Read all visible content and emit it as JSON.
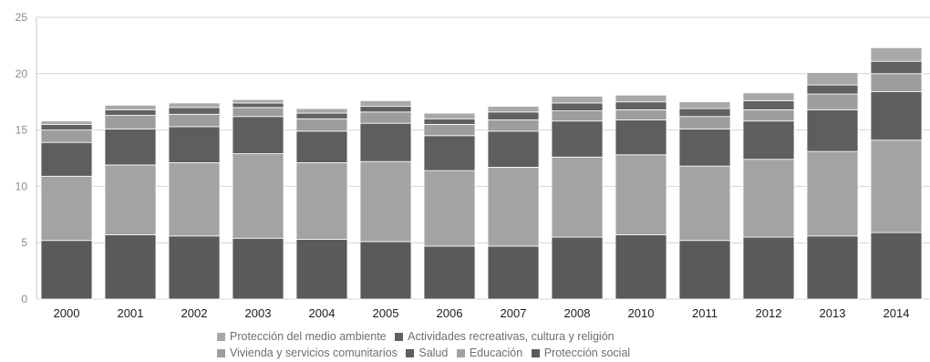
{
  "chart_data": {
    "type": "bar",
    "stacked": true,
    "categories": [
      "2000",
      "2001",
      "2002",
      "2003",
      "2004",
      "2005",
      "2006",
      "2007",
      "2008",
      "2010",
      "2011",
      "2012",
      "2013",
      "2014"
    ],
    "ylim": [
      0,
      25
    ],
    "yticks": [
      0,
      5,
      10,
      15,
      20,
      25
    ],
    "grid": true,
    "legend_position": "bottom",
    "series": [
      {
        "name": "Protección social",
        "color": "#5a5a5a",
        "values": [
          5.2,
          5.7,
          5.6,
          5.4,
          5.3,
          5.1,
          4.7,
          4.7,
          5.5,
          5.7,
          5.2,
          5.5,
          5.6,
          5.9
        ]
      },
      {
        "name": "Educación",
        "color": "#a3a3a3",
        "values": [
          5.7,
          6.2,
          6.5,
          7.5,
          6.8,
          7.1,
          6.7,
          7.0,
          7.1,
          7.1,
          6.6,
          6.9,
          7.5,
          8.2
        ]
      },
      {
        "name": "Salud",
        "color": "#5e5e5e",
        "values": [
          3.0,
          3.2,
          3.2,
          3.3,
          2.8,
          3.4,
          3.1,
          3.2,
          3.2,
          3.1,
          3.3,
          3.4,
          3.7,
          4.3
        ]
      },
      {
        "name": "Vivienda y servicios comunitarios",
        "color": "#9d9d9d",
        "values": [
          1.1,
          1.2,
          1.1,
          0.8,
          1.1,
          1.0,
          1.0,
          1.0,
          0.9,
          0.9,
          1.1,
          1.0,
          1.4,
          1.6
        ]
      },
      {
        "name": "Actividades recreativas, cultura y religión",
        "color": "#616161",
        "values": [
          0.5,
          0.5,
          0.6,
          0.4,
          0.5,
          0.5,
          0.5,
          0.7,
          0.7,
          0.7,
          0.7,
          0.8,
          0.8,
          1.1
        ]
      },
      {
        "name": "Protección del medio ambiente",
        "color": "#a8a8a8",
        "values": [
          0.3,
          0.4,
          0.4,
          0.3,
          0.4,
          0.5,
          0.5,
          0.5,
          0.6,
          0.6,
          0.6,
          0.7,
          1.1,
          1.2
        ]
      }
    ],
    "legend_rows": [
      [
        "Protección del medio ambiente",
        "Actividades recreativas, cultura y religión"
      ],
      [
        "Vivienda y servicios comunitarios",
        "Salud",
        "Educación",
        "Protección social"
      ]
    ]
  }
}
